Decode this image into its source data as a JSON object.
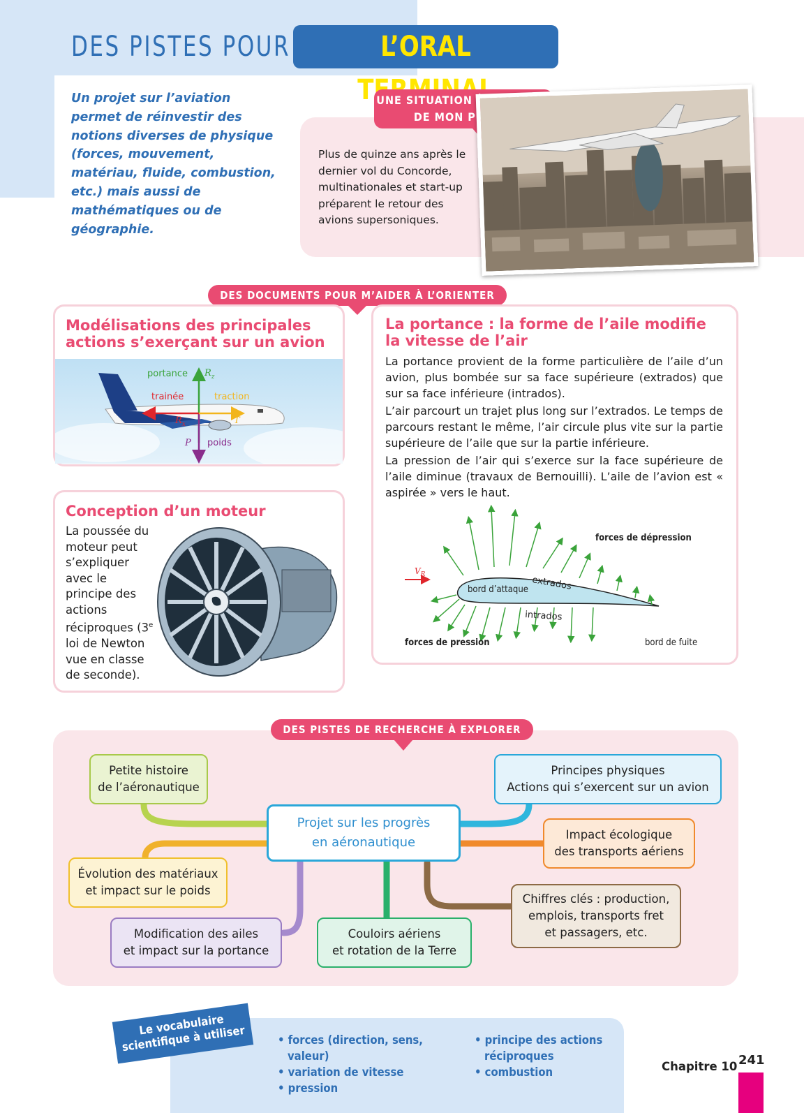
{
  "header": {
    "title_left": "DES PISTES POUR",
    "title_right": "L’ORAL TERMINAL"
  },
  "intro": {
    "text": "Un projet sur l’aviation permet de réinvestir des notions diverses de physique (forces, mouvement, matériau, fluide, combustion, etc.) mais aussi de mathématiques ou de géographie."
  },
  "situation": {
    "tag_line1": "UNE SITUATION À L’ORIGINE",
    "tag_line2": "DE MON PROJET",
    "text": "Plus de quinze ans après le dernier vol du Concorde, multinationales et start-up préparent le retour des avions supersoniques."
  },
  "documents": {
    "tag": "DES DOCUMENTS POUR M’AIDER À L’ORIENTER",
    "model": {
      "title": "Modélisations des principales actions s’exerçant sur un avion",
      "labels": {
        "portance": "portance",
        "rz": "R",
        "rz_sub": "z",
        "trainee": "trainée",
        "traction": "traction",
        "rx": "R",
        "rx_sub": "x",
        "t": "T",
        "p": "P",
        "poids": "poids"
      }
    },
    "motor": {
      "title": "Conception d’un moteur",
      "text_a": "La poussée du moteur peut s’expliquer avec le principe des actions réciproques (3",
      "text_sup": "e",
      "text_b": " loi de Newton vue en classe de seconde)."
    },
    "lift": {
      "title": "La portance : la forme de l’aile modifie la vitesse de l’air",
      "p1": "La portance provient de la forme particulière de l’aile d’un avion, plus bombée sur sa face supérieure (extrados) que sur sa face inférieure (intrados).",
      "p2": "L’air parcourt un trajet plus long sur l’extrados. Le temps de parcours restant le même, l’air circule plus vite sur la partie supérieure de l’aile que sur la partie inférieure.",
      "p3": "La pression de l’air qui s’exerce sur la face supérieure de l’aile diminue (travaux de Bernouilli). L’aile de l’avion est « aspirée » vers le haut.",
      "diagram": {
        "forces_depression": "forces de dépression",
        "vr": "V",
        "vr_sub": "R",
        "extrados": "extrados",
        "bord_attaque": "bord d’attaque",
        "intrados": "intrados",
        "forces_pression": "forces de pression",
        "bord_fuite": "bord de fuite"
      }
    }
  },
  "pistes": {
    "tag": "DES PISTES DE RECHERCHE À EXPLORER",
    "center_l1": "Projet sur les progrès",
    "center_l2": "en aéronautique",
    "hist_l1": "Petite histoire",
    "hist_l2": "de l’aéronautique",
    "princ_l1": "Principes physiques",
    "princ_l2": "Actions qui s’exercent sur un avion",
    "impact_l1": "Impact écologique",
    "impact_l2": "des transports aériens",
    "evo_l1": "Évolution des matériaux",
    "evo_l2": "et impact sur le poids",
    "chiffres_l1": "Chiffres clés : production,",
    "chiffres_l2": "emplois, transports fret",
    "chiffres_l3": "et passagers, etc.",
    "modif_l1": "Modification des ailes",
    "modif_l2": "et impact sur la portance",
    "couloirs_l1": "Couloirs aériens",
    "couloirs_l2": "et rotation de la Terre"
  },
  "vocab": {
    "banner_l1": "Le vocabulaire",
    "banner_l2": "scientifique à utiliser",
    "col1": [
      "• forces (direction, sens, valeur)",
      "• variation de vitesse",
      "• pression"
    ],
    "col2": [
      "• principe des actions réciproques",
      "• combustion"
    ]
  },
  "footer": {
    "chapter": "Chapitre 10",
    "page": "241"
  },
  "colors": {
    "brand_blue": "#2f6fb5",
    "accent_pink": "#e94b72",
    "title_yellow": "#ffe600"
  }
}
